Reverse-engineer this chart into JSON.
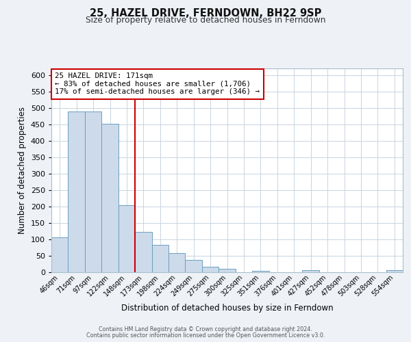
{
  "title": "25, HAZEL DRIVE, FERNDOWN, BH22 9SP",
  "subtitle": "Size of property relative to detached houses in Ferndown",
  "xlabel": "Distribution of detached houses by size in Ferndown",
  "ylabel": "Number of detached properties",
  "bar_labels": [
    "46sqm",
    "71sqm",
    "97sqm",
    "122sqm",
    "148sqm",
    "173sqm",
    "198sqm",
    "224sqm",
    "249sqm",
    "275sqm",
    "300sqm",
    "325sqm",
    "351sqm",
    "376sqm",
    "401sqm",
    "427sqm",
    "452sqm",
    "478sqm",
    "503sqm",
    "528sqm",
    "554sqm"
  ],
  "bar_values": [
    105,
    488,
    488,
    452,
    203,
    122,
    83,
    57,
    37,
    16,
    10,
    0,
    4,
    0,
    0,
    5,
    0,
    0,
    0,
    0,
    6
  ],
  "bar_color": "#cddaea",
  "bar_edge_color": "#6a9fc0",
  "highlight_line_color": "#cc0000",
  "highlight_bar_index": 5,
  "annotation_box_line1": "25 HAZEL DRIVE: 171sqm",
  "annotation_box_line2": "← 83% of detached houses are smaller (1,706)",
  "annotation_box_line3": "17% of semi-detached houses are larger (346) →",
  "annotation_box_color": "#ffffff",
  "annotation_box_edge_color": "#cc0000",
  "ylim": [
    0,
    620
  ],
  "yticks": [
    0,
    50,
    100,
    150,
    200,
    250,
    300,
    350,
    400,
    450,
    500,
    550,
    600
  ],
  "footer_line1": "Contains HM Land Registry data © Crown copyright and database right 2024.",
  "footer_line2": "Contains public sector information licensed under the Open Government Licence v3.0.",
  "background_color": "#eef2f7",
  "plot_bg_color": "#ffffff",
  "grid_color": "#c8d4e0"
}
